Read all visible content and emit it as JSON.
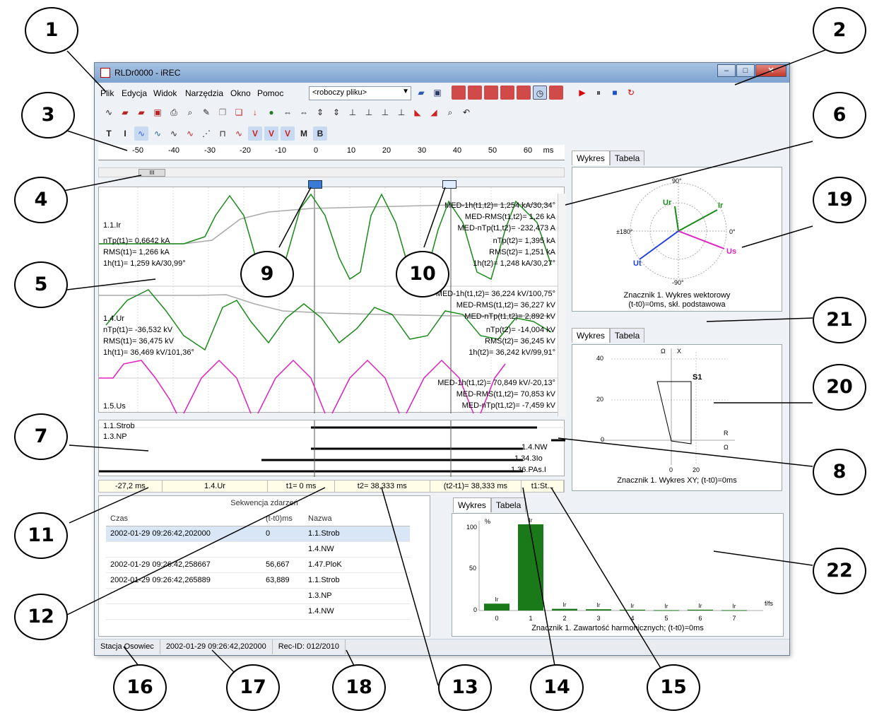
{
  "window": {
    "title": "RLDr0000 - iREC"
  },
  "menu": {
    "items": [
      "Plik",
      "Edycja",
      "Widok",
      "Narzędzia",
      "Okno",
      "Pomoc"
    ],
    "combo_value": "<roboczy pliku>"
  },
  "ruler": {
    "ticks": [
      "-50",
      "-40",
      "-30",
      "-20",
      "-10",
      "0",
      "10",
      "20",
      "30",
      "40",
      "50",
      "60"
    ],
    "unit": "ms"
  },
  "scroll_thumb": "III",
  "channels": {
    "ir": {
      "name": "1.1.Ir",
      "left": [
        "nTp(t1)= 0,6642 kA",
        "RMS(t1)= 1,266 kA",
        "1h(t1)= 1,259 kA/30,99°"
      ],
      "right": [
        "MED-1h(t1,t2)= 1,254 kA/30,34°",
        "MED-RMS(t1,t2)= 1,26 kA",
        "MED-nTp(t1,t2)= -232,473 A",
        "nTp(t2)= 1,395 kA",
        "RMS(t2)= 1,251 kA",
        "1h(t2)= 1,248 kA/30,27°"
      ]
    },
    "ur": {
      "name": "1.4.Ur",
      "left": [
        "nTp(t1)= -36,532 kV",
        "RMS(t1)= 36,475 kV",
        "1h(t1)= 36,469 kV/101,36°"
      ],
      "right": [
        "MED-1h(t1,t2)= 36,224 kV/100,75°",
        "MED-RMS(t1,t2)= 36,227 kV",
        "MED-nTp(t1,t2)= 2,892 kV",
        "nTp(t2)= -14,004 kV",
        "RMS(t2)= 36,245 kV",
        "1h(t2)= 36,242 kV/99,91°"
      ]
    },
    "us": {
      "name": "1.5.Us",
      "right": [
        "MED-1h(t1,t2)= 70,849 kV/-20,13°",
        "MED-RMS(t1,t2)= 70,853 kV",
        "MED-nTp(t1,t2)= -7,459 kV"
      ]
    }
  },
  "digital": {
    "left": [
      "1.1.Strob",
      "1.3.NP"
    ],
    "right": [
      "1.4.NW",
      "1.34.3Io",
      "1.36.PAs.I"
    ]
  },
  "statusline": {
    "cursor": "-27,2 ms",
    "channel": "1.4.Ur",
    "t1": "t1= 0 ms",
    "t2": "t2= 38,333 ms",
    "dt": "(t2-t1)= 38,333 ms",
    "tail": "t1:St..."
  },
  "events": {
    "title": "Sekwencja zdarzeń",
    "columns": [
      "Czas",
      "(t-t0)ms",
      "Nazwa"
    ],
    "rows": [
      {
        "time": "2002-01-29 09:26:42,202000",
        "dt": "0",
        "name": "1.1.Strob"
      },
      {
        "time": "",
        "dt": "",
        "name": "1.4.NW"
      },
      {
        "time": "2002-01-29 09:26:42,258667",
        "dt": "56,667",
        "name": "1.47.PloK"
      },
      {
        "time": "2002-01-29 09:26:42,265889",
        "dt": "63,889",
        "name": "1.1.Strob"
      },
      {
        "time": "",
        "dt": "",
        "name": "1.3.NP"
      },
      {
        "time": "",
        "dt": "",
        "name": "1.4.NW"
      }
    ]
  },
  "tabs": {
    "chart": "Wykres",
    "table": "Tabela"
  },
  "vector": {
    "caption1": "Znacznik 1. Wykres wektorowy",
    "caption2": "(t-t0)=0ms, skł. podstawowa",
    "labels": {
      "top": "90°",
      "bottom": "-90°",
      "left": "±180°",
      "right": "0°",
      "ur": "Ur",
      "ir": "Ir",
      "us": "Us",
      "ut": "Ut"
    }
  },
  "xy": {
    "caption": "Znacznik 1. Wykres XY; (t-t0)=0ms",
    "y_ticks": [
      "40",
      "20",
      "0"
    ],
    "x_ticks": [
      "0",
      "20"
    ],
    "axis_x": "R",
    "axis_y": "X",
    "unit": "Ω",
    "marker": "S1"
  },
  "harm": {
    "caption": "Znacznik 1. Zawartość harmonicznych; (t-t0)=0ms",
    "y_ticks": [
      "100",
      "50",
      "0"
    ],
    "y_unit": "%",
    "x_unit": "f/fs",
    "categories": [
      "0",
      "1",
      "2",
      "3",
      "4",
      "5",
      "6",
      "7"
    ],
    "values": [
      8,
      100,
      2,
      1.5,
      1,
      0.5,
      1,
      0.5
    ],
    "bar_label": "Ir"
  },
  "statusbar": {
    "station": "Stacja Osowiec",
    "datetime": "2002-01-29 09:26:42,202000",
    "rec": "Rec-ID: 012/2010"
  },
  "callouts": [
    "1",
    "2",
    "3",
    "4",
    "5",
    "6",
    "7",
    "8",
    "9",
    "10",
    "11",
    "12",
    "13",
    "14",
    "15",
    "16",
    "17",
    "18",
    "19",
    "20",
    "21",
    "22"
  ]
}
